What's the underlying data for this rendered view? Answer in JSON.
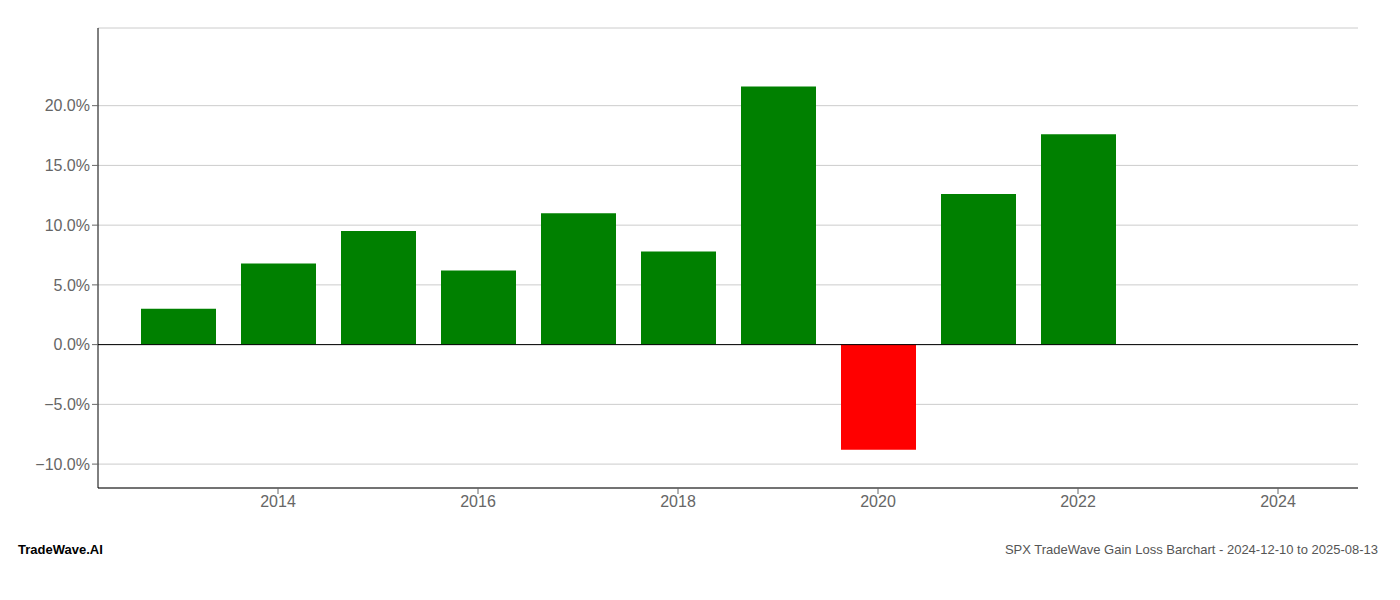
{
  "chart_data": {
    "type": "bar",
    "x": [
      2013,
      2014,
      2015,
      2016,
      2017,
      2018,
      2019,
      2020,
      2021,
      2022
    ],
    "values": [
      0.03,
      0.068,
      0.095,
      0.062,
      0.11,
      0.078,
      0.216,
      -0.088,
      0.126,
      0.176
    ],
    "colors": [
      "#008000",
      "#008000",
      "#008000",
      "#008000",
      "#008000",
      "#008000",
      "#008000",
      "#ff0000",
      "#008000",
      "#008000"
    ],
    "xlim": [
      2012.2,
      2024.8
    ],
    "xticks": [
      2014,
      2016,
      2018,
      2020,
      2022,
      2024
    ],
    "ylim": [
      -0.12,
      0.265
    ],
    "yticks": [
      {
        "value": -0.1,
        "label": "−10.0%"
      },
      {
        "value": -0.05,
        "label": "−5.0%"
      },
      {
        "value": 0.0,
        "label": "0.0%"
      },
      {
        "value": 0.05,
        "label": "5.0%"
      },
      {
        "value": 0.1,
        "label": "10.0%"
      },
      {
        "value": 0.15,
        "label": "15.0%"
      },
      {
        "value": 0.2,
        "label": "20.0%"
      }
    ],
    "grid": true,
    "annotations": [
      "TradeWave.AI",
      "SPX TradeWave Gain Loss Barchart - 2024-12-10 to 2025-08-13"
    ]
  }
}
